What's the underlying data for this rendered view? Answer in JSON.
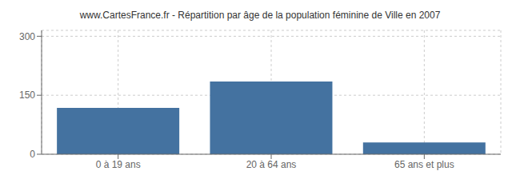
{
  "chart_data": {
    "type": "bar",
    "title": "www.CartesFrance.fr - Répartition par âge de la population féminine de Ville en 2007",
    "categories": [
      "0 à 19 ans",
      "20 à 64 ans",
      "65 ans et plus"
    ],
    "values": [
      118,
      185,
      30
    ],
    "color": "#4472a0",
    "ylim": [
      0,
      315
    ],
    "yticks": [
      0,
      150,
      300
    ],
    "grid": true
  }
}
